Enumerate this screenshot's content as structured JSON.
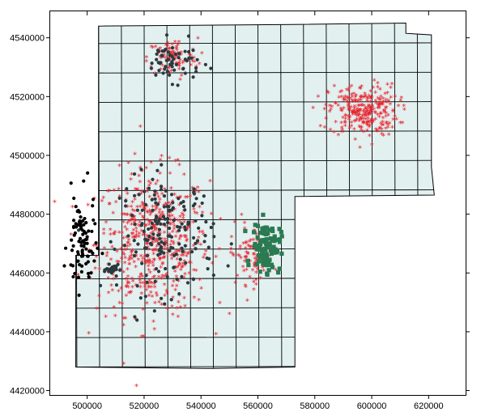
{
  "chart_data": {
    "type": "scatter",
    "title": "",
    "xlabel": "",
    "ylabel": "",
    "xlim": [
      487000,
      633000
    ],
    "ylim": [
      4418500,
      4549000
    ],
    "x_ticks": [
      "500000",
      "520000",
      "540000",
      "560000",
      "580000",
      "600000",
      "620000"
    ],
    "y_ticks": [
      "4420000",
      "4440000",
      "4460000",
      "4480000",
      "4500000",
      "4520000",
      "4540000"
    ],
    "x_tick_values": [
      500000,
      520000,
      540000,
      560000,
      580000,
      600000,
      620000
    ],
    "y_tick_values": [
      4420000,
      4440000,
      4460000,
      4480000,
      4500000,
      4520000,
      4540000
    ],
    "grid": false,
    "legend": "none",
    "region_fill": "#e2f0f0",
    "region_outline": [
      [
        504000,
        4544000
      ],
      [
        572000,
        4544500
      ],
      [
        612000,
        4545000
      ],
      [
        612000,
        4541500
      ],
      [
        621000,
        4541000
      ],
      [
        621000,
        4496000
      ],
      [
        622000,
        4486500
      ],
      [
        573000,
        4486000
      ],
      [
        573000,
        4428000
      ],
      [
        544000,
        4427500
      ],
      [
        496000,
        4428000
      ],
      [
        496000,
        4466000
      ],
      [
        504000,
        4466000
      ],
      [
        504000,
        4500000
      ]
    ],
    "series": [
      {
        "symbol": "asterisk",
        "color": "#e8202a",
        "clusters": [
          {
            "center": [
              523000,
              4470000
            ],
            "sx": 18000,
            "sy": 22000,
            "n": 560
          },
          {
            "center": [
              530000,
              4533000
            ],
            "sx": 8000,
            "sy": 6000,
            "n": 90
          },
          {
            "center": [
              597000,
              4515000
            ],
            "sx": 11000,
            "sy": 8000,
            "n": 280
          },
          {
            "center": [
              558000,
              4466000
            ],
            "sx": 7000,
            "sy": 9000,
            "n": 90
          }
        ]
      },
      {
        "symbol": "circle",
        "color": "#2c3a3f",
        "clusters": [
          {
            "center": [
              528000,
              4473000
            ],
            "sx": 15000,
            "sy": 18000,
            "n": 180
          },
          {
            "center": [
              530000,
              4532000
            ],
            "sx": 9000,
            "sy": 6000,
            "n": 60
          },
          {
            "center": [
              509000,
              4461000
            ],
            "sx": 2000,
            "sy": 1500,
            "n": 30
          }
        ]
      },
      {
        "symbol": "circle",
        "color": "#000000",
        "clusters": [
          {
            "center": [
              498000,
              4470000
            ],
            "sx": 4500,
            "sy": 15000,
            "n": 90
          }
        ]
      },
      {
        "symbol": "square",
        "color": "#2a7a52",
        "clusters": [
          {
            "center": [
              563000,
              4469000
            ],
            "sx": 4500,
            "sy": 7500,
            "n": 110
          }
        ]
      }
    ]
  }
}
